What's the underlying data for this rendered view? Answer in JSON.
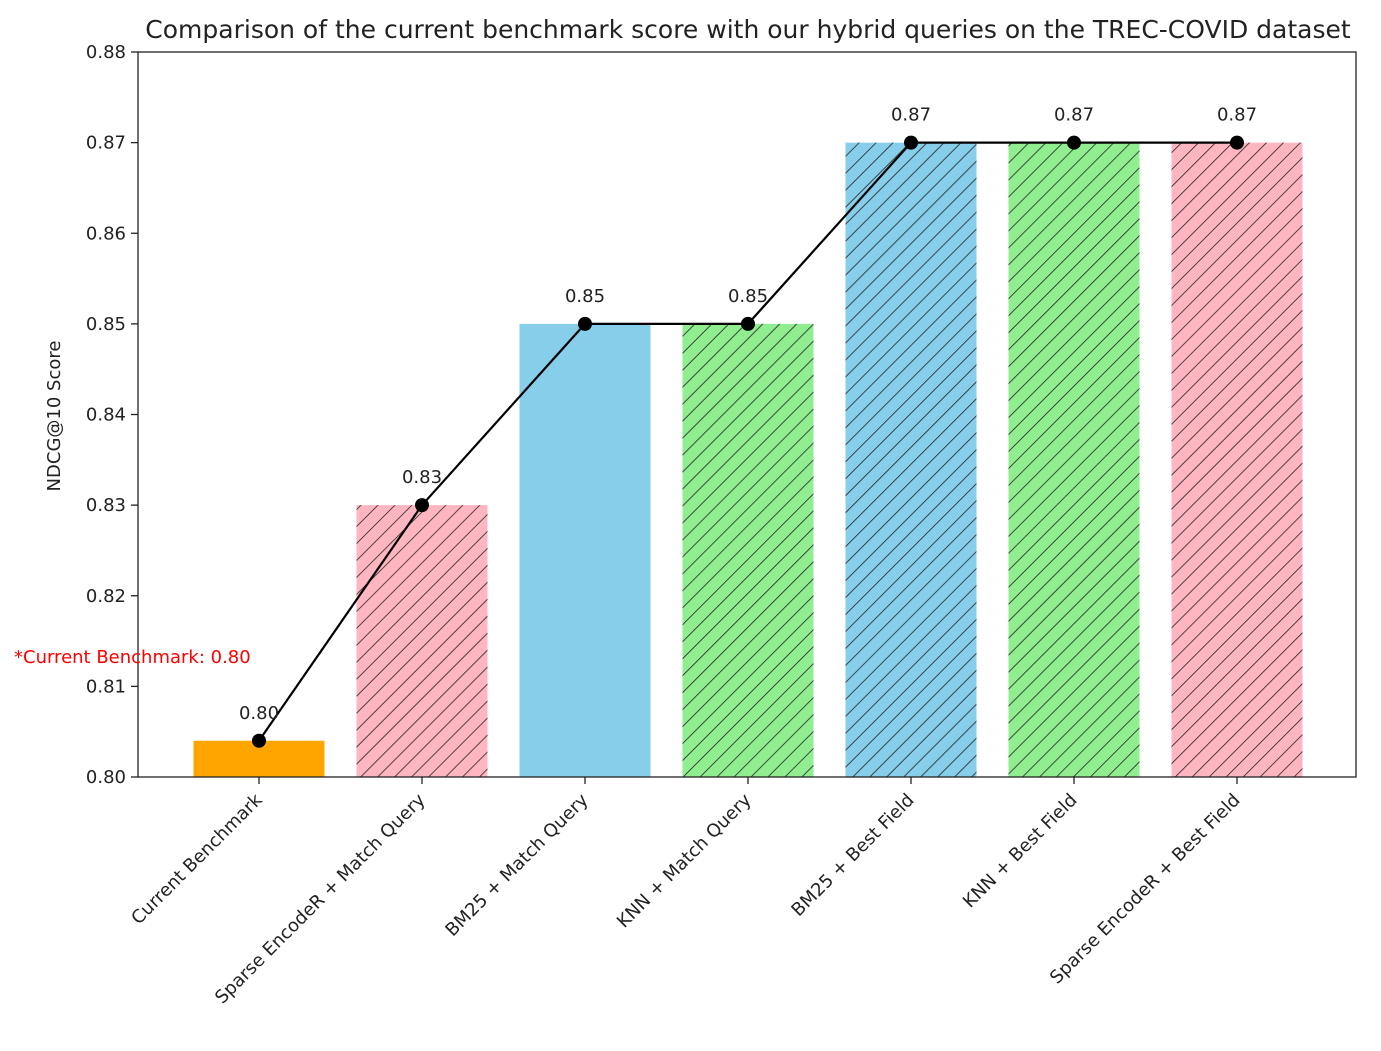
{
  "chart_data": {
    "type": "bar",
    "title": "Comparison of the current benchmark score with our hybrid queries on the TREC-COVID dataset",
    "xlabel": "",
    "ylabel": "NDCG@10 Score",
    "ylim": [
      0.8,
      0.88
    ],
    "yticks": [
      "0.80",
      "0.81",
      "0.82",
      "0.83",
      "0.84",
      "0.85",
      "0.86",
      "0.87",
      "0.88"
    ],
    "grid": false,
    "categories": [
      "Current Benchmark",
      "Sparse EncodeR + Match Query",
      "BM25 + Match Query",
      "KNN + Match Query",
      "BM25 + Best Field",
      "KNN + Best Field",
      "Sparse EncodeR + Best Field"
    ],
    "values": [
      0.804,
      0.83,
      0.85,
      0.85,
      0.87,
      0.87,
      0.87
    ],
    "data_labels": [
      "0.80",
      "0.83",
      "0.85",
      "0.85",
      "0.87",
      "0.87",
      "0.87"
    ],
    "bar_colors": [
      "#ffa500",
      "#ffb6c1",
      "#87ceeb",
      "#90ee90",
      "#87ceeb",
      "#90ee90",
      "#ffb6c1"
    ],
    "bar_hatched": [
      false,
      true,
      false,
      true,
      true,
      true,
      true
    ],
    "line_overlay": {
      "values": [
        0.804,
        0.83,
        0.85,
        0.85,
        0.87,
        0.87,
        0.87
      ],
      "color": "#000000",
      "marker": "circle"
    },
    "annotation": {
      "text": "*Current Benchmark: 0.80",
      "color": "#ff0000"
    }
  }
}
